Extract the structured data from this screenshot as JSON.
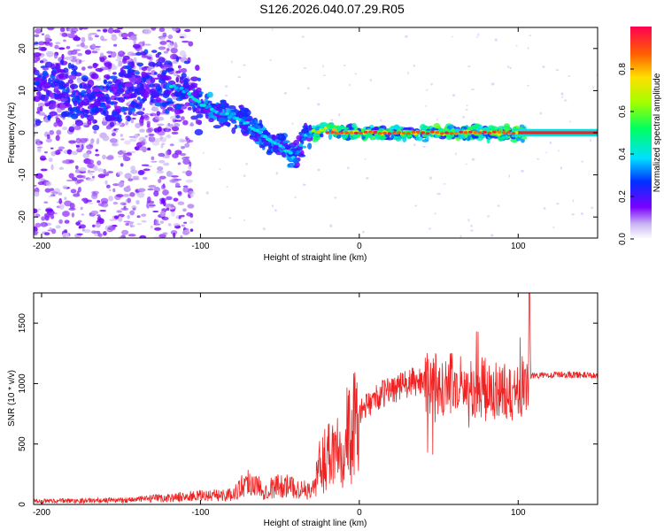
{
  "title": "S126.2026.040.07.29.R05",
  "colors": {
    "snr_line": "#ee2222",
    "dominant_band": "#e8262a"
  },
  "chart_data": [
    {
      "type": "heatmap",
      "xlabel": "Height of straight line (km)",
      "ylabel": "Frequency (Hz)",
      "xlim": [
        -205,
        150
      ],
      "ylim": [
        -25,
        25
      ],
      "xticks": [
        -200,
        -100,
        0,
        100
      ],
      "yticks": [
        -20,
        -10,
        0,
        10,
        20
      ],
      "colorbar": {
        "label": "Normalized spectral amplitude",
        "range": [
          0,
          1
        ],
        "ticks": [
          0.0,
          0.2,
          0.4,
          0.6,
          0.8
        ],
        "colormap": "rainbow-white"
      },
      "ridge": {
        "x": [
          -200,
          -185,
          -170,
          -155,
          -140,
          -125,
          -110,
          -100,
          -90,
          -80,
          -70,
          -60,
          -50,
          -40,
          -35,
          -30,
          -20,
          -10,
          0,
          20,
          40,
          60,
          80,
          100,
          150
        ],
        "y": [
          12,
          10,
          8,
          9,
          11,
          12,
          10,
          7,
          5,
          4,
          2,
          -1,
          -3,
          -6,
          -1,
          0,
          1,
          0,
          0,
          0,
          0,
          0,
          0,
          0,
          0
        ]
      }
    },
    {
      "type": "line",
      "xlabel": "Height of straight line (km)",
      "ylabel": "SNR (10 * v/v)",
      "xlim": [
        -205,
        150
      ],
      "ylim": [
        0,
        1750
      ],
      "xticks": [
        -200,
        -100,
        0,
        100
      ],
      "yticks": [
        0,
        500,
        1000,
        1500
      ],
      "envelope": {
        "x": [
          -205,
          -150,
          -120,
          -100,
          -80,
          -70,
          -60,
          -50,
          -40,
          -30,
          -25,
          -20,
          -10,
          0,
          10,
          20,
          30,
          40,
          60,
          80,
          100,
          105,
          108,
          110,
          130,
          150
        ],
        "y": [
          30,
          40,
          60,
          80,
          90,
          220,
          130,
          180,
          150,
          120,
          350,
          500,
          650,
          780,
          900,
          980,
          1020,
          1050,
          1050,
          1010,
          950,
          1100,
          1060,
          1060,
          1070,
          1060
        ]
      }
    }
  ]
}
